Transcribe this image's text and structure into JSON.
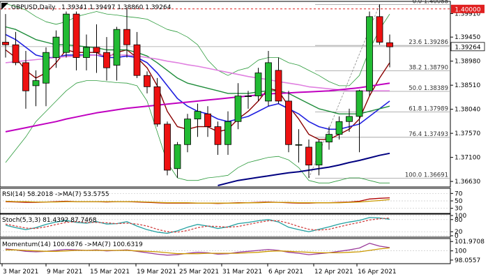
{
  "chart_data": [
    {
      "type": "candlestick",
      "title": "GBPUSD,Daily",
      "ohlc_header": "1.39341 1.39497 1.38860 1.39264",
      "price_axis_ticks": [
        "1.39910",
        "1.39450",
        "1.38980",
        "1.38510",
        "1.38040",
        "1.37570",
        "1.37100",
        "1.36630"
      ],
      "ylim": [
        1.3655,
        1.4012
      ],
      "x_tick_labels": [
        "3 Mar 2021",
        "9 Mar 2021",
        "15 Mar 2021",
        "19 Mar 2021",
        "25 Mar 2021",
        "31 Mar 2021",
        "6 Apr 2021",
        "12 Apr 2021",
        "16 Apr 2021"
      ],
      "candles": [
        {
          "date": "2021-03-01",
          "o": 1.3935,
          "h": 1.399,
          "l": 1.3905,
          "c": 1.393
        },
        {
          "date": "2021-03-02",
          "o": 1.393,
          "h": 1.3955,
          "l": 1.389,
          "c": 1.3895
        },
        {
          "date": "2021-03-03",
          "o": 1.3895,
          "h": 1.3918,
          "l": 1.3805,
          "c": 1.384
        },
        {
          "date": "2021-03-04",
          "o": 1.385,
          "h": 1.388,
          "l": 1.381,
          "c": 1.386
        },
        {
          "date": "2021-03-05",
          "o": 1.3855,
          "h": 1.3925,
          "l": 1.381,
          "c": 1.3915
        },
        {
          "date": "2021-03-08",
          "o": 1.3905,
          "h": 1.3958,
          "l": 1.3885,
          "c": 1.3945
        },
        {
          "date": "2021-03-09",
          "o": 1.3915,
          "h": 1.3995,
          "l": 1.3905,
          "c": 1.399
        },
        {
          "date": "2021-03-10",
          "o": 1.399,
          "h": 1.3995,
          "l": 1.388,
          "c": 1.3905
        },
        {
          "date": "2021-03-11",
          "o": 1.3905,
          "h": 1.395,
          "l": 1.388,
          "c": 1.3925
        },
        {
          "date": "2021-03-12",
          "o": 1.3925,
          "h": 1.397,
          "l": 1.3875,
          "c": 1.3915
        },
        {
          "date": "2021-03-15",
          "o": 1.3915,
          "h": 1.3945,
          "l": 1.386,
          "c": 1.3885
        },
        {
          "date": "2021-03-16",
          "o": 1.389,
          "h": 1.3965,
          "l": 1.386,
          "c": 1.396
        },
        {
          "date": "2021-03-17",
          "o": 1.396,
          "h": 1.4,
          "l": 1.3905,
          "c": 1.393
        },
        {
          "date": "2021-03-18",
          "o": 1.393,
          "h": 1.3955,
          "l": 1.3865,
          "c": 1.387
        },
        {
          "date": "2021-03-19",
          "o": 1.387,
          "h": 1.3878,
          "l": 1.3835,
          "c": 1.3848
        },
        {
          "date": "2021-03-22",
          "o": 1.3848,
          "h": 1.3865,
          "l": 1.377,
          "c": 1.3775
        },
        {
          "date": "2021-03-23",
          "o": 1.3775,
          "h": 1.378,
          "l": 1.3675,
          "c": 1.3685
        },
        {
          "date": "2021-03-24",
          "o": 1.3688,
          "h": 1.374,
          "l": 1.367,
          "c": 1.3735
        },
        {
          "date": "2021-03-25",
          "o": 1.3735,
          "h": 1.3795,
          "l": 1.372,
          "c": 1.3785
        },
        {
          "date": "2021-03-26",
          "o": 1.3785,
          "h": 1.3815,
          "l": 1.375,
          "c": 1.38
        },
        {
          "date": "2021-03-29",
          "o": 1.3795,
          "h": 1.381,
          "l": 1.375,
          "c": 1.377
        },
        {
          "date": "2021-03-30",
          "o": 1.377,
          "h": 1.378,
          "l": 1.3715,
          "c": 1.3735
        },
        {
          "date": "2021-03-31",
          "o": 1.3735,
          "h": 1.38,
          "l": 1.3715,
          "c": 1.378
        },
        {
          "date": "2021-04-01",
          "o": 1.378,
          "h": 1.3855,
          "l": 1.3765,
          "c": 1.383
        },
        {
          "date": "2021-04-02",
          "o": 1.383,
          "h": 1.384,
          "l": 1.3805,
          "c": 1.383
        },
        {
          "date": "2021-04-05",
          "o": 1.383,
          "h": 1.3885,
          "l": 1.382,
          "c": 1.3875
        },
        {
          "date": "2021-04-06",
          "o": 1.382,
          "h": 1.3918,
          "l": 1.381,
          "c": 1.3895
        },
        {
          "date": "2021-04-07",
          "o": 1.388,
          "h": 1.3905,
          "l": 1.3815,
          "c": 1.382
        },
        {
          "date": "2021-04-08",
          "o": 1.382,
          "h": 1.384,
          "l": 1.372,
          "c": 1.3735
        },
        {
          "date": "2021-04-09",
          "o": 1.3735,
          "h": 1.3765,
          "l": 1.37,
          "c": 1.3735
        },
        {
          "date": "2021-04-12",
          "o": 1.373,
          "h": 1.3745,
          "l": 1.367,
          "c": 1.3695
        },
        {
          "date": "2021-04-13",
          "o": 1.3695,
          "h": 1.3745,
          "l": 1.3675,
          "c": 1.374
        },
        {
          "date": "2021-04-14",
          "o": 1.374,
          "h": 1.377,
          "l": 1.3725,
          "c": 1.3755
        },
        {
          "date": "2021-04-15",
          "o": 1.3755,
          "h": 1.379,
          "l": 1.3745,
          "c": 1.378
        },
        {
          "date": "2021-04-16",
          "o": 1.378,
          "h": 1.3805,
          "l": 1.376,
          "c": 1.379
        },
        {
          "date": "2021-04-19",
          "o": 1.379,
          "h": 1.3842,
          "l": 1.372,
          "c": 1.384
        },
        {
          "date": "2021-04-20",
          "o": 1.384,
          "h": 1.3995,
          "l": 1.383,
          "c": 1.3985
        },
        {
          "date": "2021-04-21",
          "o": 1.3985,
          "h": 1.4009,
          "l": 1.393,
          "c": 1.3935
        },
        {
          "date": "2021-04-22",
          "o": 1.3934,
          "h": 1.395,
          "l": 1.3886,
          "c": 1.3926
        }
      ],
      "moving_averages": [
        {
          "color": "#8b0000",
          "values": [
            1.392,
            1.3905,
            1.388,
            1.3865,
            1.3875,
            1.3895,
            1.392,
            1.3915,
            1.3915,
            1.3915,
            1.3905,
            1.3915,
            1.392,
            1.3905,
            1.3885,
            1.385,
            1.38,
            1.377,
            1.3765,
            1.377,
            1.377,
            1.376,
            1.3765,
            1.3785,
            1.38,
            1.382,
            1.3845,
            1.384,
            1.381,
            1.3785,
            1.3755,
            1.3745,
            1.3745,
            1.3755,
            1.3765,
            1.3785,
            1.383,
            1.3865,
            1.3895
          ]
        },
        {
          "color": "#2020e0",
          "values": [
            1.395,
            1.394,
            1.3925,
            1.391,
            1.3905,
            1.3905,
            1.391,
            1.391,
            1.391,
            1.391,
            1.3905,
            1.3905,
            1.3908,
            1.3905,
            1.3895,
            1.3875,
            1.385,
            1.3825,
            1.381,
            1.38,
            1.3795,
            1.3785,
            1.378,
            1.3785,
            1.379,
            1.38,
            1.381,
            1.3815,
            1.3805,
            1.3795,
            1.378,
            1.377,
            1.3765,
            1.3765,
            1.377,
            1.3775,
            1.379,
            1.3805,
            1.382
          ]
        },
        {
          "color": "#1e8c3a",
          "values": [
            1.3965,
            1.396,
            1.395,
            1.394,
            1.3935,
            1.393,
            1.393,
            1.3928,
            1.3926,
            1.3924,
            1.392,
            1.392,
            1.392,
            1.3915,
            1.3908,
            1.3895,
            1.388,
            1.3865,
            1.3855,
            1.385,
            1.3845,
            1.384,
            1.3835,
            1.3835,
            1.3835,
            1.3838,
            1.384,
            1.384,
            1.3835,
            1.3825,
            1.3815,
            1.3805,
            1.38,
            1.3795,
            1.3795,
            1.3795,
            1.38,
            1.3805,
            1.381
          ]
        },
        {
          "color": "#e080e0",
          "values": [
            1.3895,
            1.3897,
            1.3899,
            1.3901,
            1.3903,
            1.3905,
            1.3907,
            1.3908,
            1.3909,
            1.391,
            1.391,
            1.391,
            1.391,
            1.3908,
            1.3905,
            1.3902,
            1.3898,
            1.3895,
            1.3891,
            1.3888,
            1.3884,
            1.388,
            1.3876,
            1.3872,
            1.3868,
            1.3865,
            1.3862,
            1.3858,
            1.3855,
            1.3852,
            1.3848,
            1.3846,
            1.3844,
            1.3842,
            1.384,
            1.384,
            1.384,
            1.384,
            1.384
          ]
        },
        {
          "color": "#c000c0",
          "values": [
            1.376,
            1.3764,
            1.3768,
            1.3772,
            1.3776,
            1.378,
            1.3785,
            1.3789,
            1.3793,
            1.3797,
            1.38,
            1.3803,
            1.3806,
            1.3808,
            1.381,
            1.3812,
            1.3814,
            1.3816,
            1.3818,
            1.382,
            1.3822,
            1.3824,
            1.3826,
            1.3828,
            1.383,
            1.3832,
            1.3834,
            1.3835,
            1.3836,
            1.3837,
            1.3838,
            1.3839,
            1.384,
            1.3842,
            1.3844,
            1.3846,
            1.3849,
            1.3852,
            1.3855
          ]
        },
        {
          "color": "#000080",
          "values": [
            null,
            null,
            null,
            null,
            null,
            null,
            null,
            null,
            null,
            null,
            null,
            null,
            null,
            null,
            null,
            null,
            null,
            null,
            null,
            null,
            null,
            1.3655,
            1.366,
            1.3665,
            1.3668,
            1.3671,
            1.3674,
            1.3677,
            1.368,
            1.3682,
            1.3685,
            1.3688,
            1.3691,
            1.3695,
            1.37,
            1.3704,
            1.3709,
            1.3714,
            1.3718
          ]
        }
      ],
      "bollinger_bands": {
        "color": "#2a9a3a",
        "upper": [
          1.401,
          1.4005,
          1.3998,
          1.3985,
          1.3975,
          1.397,
          1.3975,
          1.3985,
          1.399,
          1.3995,
          1.399,
          1.3988,
          1.3985,
          1.3983,
          1.398,
          1.397,
          1.396,
          1.3955,
          1.3945,
          1.393,
          1.39,
          1.388,
          1.387,
          1.388,
          1.3885,
          1.39,
          1.3905,
          1.3905,
          1.3895,
          1.389,
          1.388,
          1.387,
          1.3858,
          1.385,
          1.385,
          1.387,
          1.392,
          1.396,
          1.399
        ],
        "lower": [
          1.37,
          1.3725,
          1.375,
          1.378,
          1.38,
          1.382,
          1.384,
          1.3855,
          1.386,
          1.386,
          1.3858,
          1.3856,
          1.3855,
          1.385,
          1.382,
          1.376,
          1.37,
          1.367,
          1.3665,
          1.3665,
          1.367,
          1.3672,
          1.3675,
          1.369,
          1.37,
          1.3705,
          1.371,
          1.3712,
          1.3705,
          1.369,
          1.3665,
          1.366,
          1.366,
          1.3665,
          1.367,
          1.367,
          1.3665,
          1.366,
          1.366
        ]
      },
      "resistance_line": {
        "label": "1.40000",
        "price": 1.4
      },
      "current_price": "1.39264",
      "fibonacci": {
        "levels": [
          {
            "label": "0.0 1.40088",
            "price": 1.40088
          },
          {
            "label": "23.6 1.39286",
            "price": 1.39286
          },
          {
            "label": "38.2 1.38790",
            "price": 1.3879
          },
          {
            "label": "50.0 1.38389",
            "price": 1.38389
          },
          {
            "label": "61.8 1.37989",
            "price": 1.37989
          },
          {
            "label": "76.4 1.37493",
            "price": 1.37493
          },
          {
            "label": "100.0 1.36691",
            "price": 1.36691
          }
        ],
        "swing_from": {
          "date": "2021-04-12",
          "price": 1.36691
        },
        "swing_to": {
          "date": "2021-04-21",
          "price": 1.40088
        }
      }
    },
    {
      "type": "line",
      "title": "RSI(14) 58.2018 ->MA(7) 53.5755",
      "ticks": [
        "70",
        "50",
        "30"
      ],
      "ylim": [
        20,
        80
      ],
      "series": [
        {
          "color": "#b00000",
          "values": [
            48,
            47,
            46,
            46,
            47,
            48,
            49,
            48,
            48,
            48,
            47,
            48,
            48,
            47,
            46,
            45,
            44,
            44,
            44,
            44,
            44,
            43,
            44,
            45,
            45,
            46,
            47,
            46,
            45,
            44,
            44,
            45,
            45,
            46,
            47,
            49,
            55,
            57,
            58.2018
          ]
        },
        {
          "color": "#cc9900",
          "values": [
            49,
            48,
            48,
            47,
            47,
            47,
            48,
            48,
            48,
            48,
            48,
            48,
            48,
            48,
            47,
            46,
            45,
            45,
            45,
            44,
            44,
            44,
            44,
            44,
            45,
            45,
            46,
            46,
            46,
            45,
            45,
            45,
            45,
            45,
            46,
            47,
            49,
            51,
            53.5755
          ]
        }
      ]
    },
    {
      "type": "line",
      "title": "Stoch(5,3,3) 81.4392 87.7468",
      "ticks": [
        "80",
        "100",
        "20",
        "0"
      ],
      "ylim": [
        0,
        100
      ],
      "series": [
        {
          "color": "#20a0a0",
          "values": [
            52,
            40,
            30,
            40,
            56,
            68,
            76,
            66,
            62,
            70,
            58,
            60,
            70,
            48,
            30,
            18,
            12,
            24,
            42,
            56,
            48,
            36,
            44,
            60,
            66,
            74,
            80,
            68,
            42,
            30,
            20,
            32,
            44,
            58,
            68,
            76,
            90,
            88,
            81.4392
          ]
        },
        {
          "color": "#d04040",
          "dashed": true,
          "values": [
            58,
            48,
            38,
            36,
            44,
            56,
            66,
            70,
            66,
            66,
            64,
            60,
            62,
            58,
            48,
            32,
            20,
            18,
            26,
            40,
            48,
            46,
            42,
            46,
            56,
            66,
            74,
            74,
            62,
            46,
            32,
            28,
            32,
            44,
            56,
            66,
            78,
            84,
            87.7468
          ]
        }
      ]
    },
    {
      "type": "line",
      "title": "Momentum(14) 100.6876 ->MA(7) 100.6319",
      "ticks": [
        "101.9708",
        "100",
        "98.0557"
      ],
      "ylim": [
        97.6,
        102.3
      ],
      "series": [
        {
          "color": "#9a3a9a",
          "values": [
            100.4,
            100.2,
            99.9,
            99.8,
            99.9,
            100.1,
            100.3,
            100.2,
            100.1,
            100.2,
            100.0,
            100.1,
            100.2,
            99.9,
            99.6,
            99.3,
            99.1,
            99.2,
            99.5,
            99.7,
            99.6,
            99.3,
            99.4,
            99.7,
            99.9,
            100.1,
            100.3,
            100.1,
            99.7,
            99.5,
            99.2,
            99.4,
            99.6,
            99.9,
            100.2,
            100.6,
            101.6,
            101.0,
            100.6876
          ]
        },
        {
          "color": "#cc9900",
          "values": [
            100.2,
            100.2,
            100.1,
            100.0,
            99.9,
            99.9,
            100.0,
            100.1,
            100.1,
            100.1,
            100.1,
            100.1,
            100.1,
            100.0,
            99.9,
            99.8,
            99.6,
            99.4,
            99.4,
            99.4,
            99.5,
            99.5,
            99.5,
            99.5,
            99.6,
            99.7,
            99.9,
            100.0,
            99.9,
            99.8,
            99.7,
            99.6,
            99.6,
            99.6,
            99.7,
            99.8,
            100.1,
            100.4,
            100.6319
          ]
        }
      ]
    }
  ]
}
